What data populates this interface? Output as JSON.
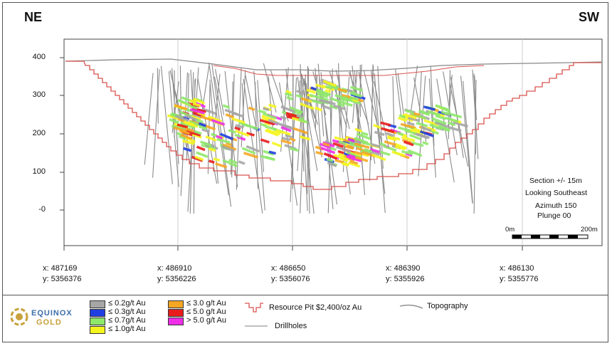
{
  "labels": {
    "ne": "NE",
    "sw": "SW"
  },
  "y_axis": {
    "ticks": [
      "400",
      "300",
      "200",
      "100",
      "-0"
    ]
  },
  "coordinates": [
    {
      "x": "x: 487169",
      "y": "y: 5356376"
    },
    {
      "x": "x: 486910",
      "y": "y: 5356226"
    },
    {
      "x": "x: 486650",
      "y": "y: 5356076"
    },
    {
      "x": "x: 486390",
      "y": "y: 5355926"
    },
    {
      "x": "x: 486130",
      "y": "y: 5355776"
    }
  ],
  "section_info": {
    "line1": "Section +/- 15m",
    "line2": "Looking Southeast",
    "line3": "Azimuth 150",
    "line4": "Plunge 00"
  },
  "scale": {
    "start": "0m",
    "end": "200m"
  },
  "legend": {
    "grades": [
      {
        "label": "≤ 0.2g/t Au",
        "color": "#a6a6a6"
      },
      {
        "label": "≤ 0.3g/t Au",
        "color": "#1f3fe0"
      },
      {
        "label": "≤ 0.7g/t Au",
        "color": "#8ee86a"
      },
      {
        "label": "≤ 1.0g/t Au",
        "color": "#f5f51e"
      },
      {
        "label": "≤ 3.0 g/t Au",
        "color": "#f5a623"
      },
      {
        "label": "≤ 5.0 g/t Au",
        "color": "#e81c1c"
      },
      {
        "label": "> 5.0 g/t Au",
        "color": "#ee2ee8"
      }
    ],
    "pit": "Resource Pit $2,400/oz Au",
    "topography": "Topography",
    "drillholes": "Drillholes"
  },
  "logo": {
    "line1": "EQUINOX",
    "line2": "GOLD"
  },
  "colors": {
    "pit": "#d9534f",
    "topo": "#888888",
    "drill": "#8a8a8a",
    "grid": "#cfcfcf"
  }
}
